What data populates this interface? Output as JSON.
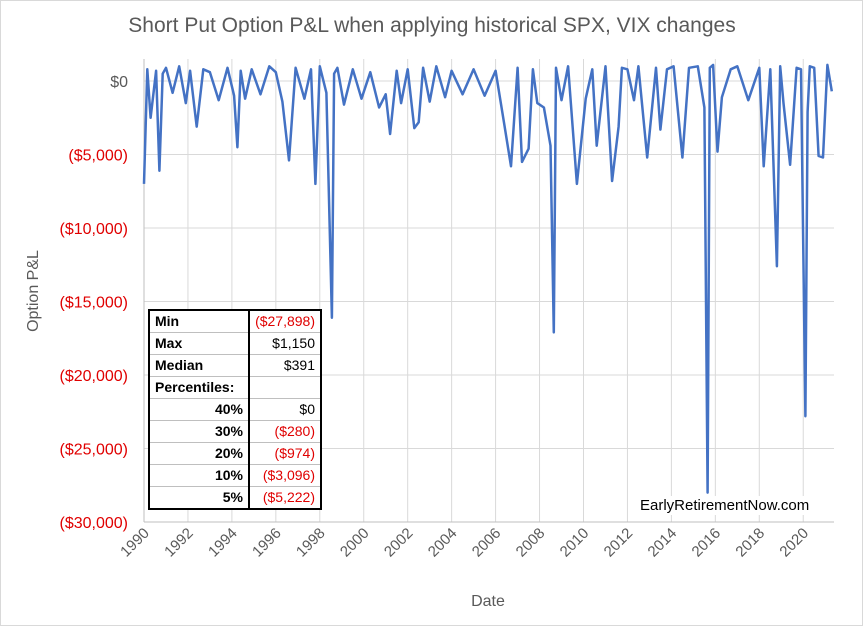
{
  "chart_data": {
    "type": "line",
    "title": "Short Put Option P&L when applying historical SPX, VIX changes",
    "xlabel": "Date",
    "ylabel": "Option P&L",
    "ylim": [
      -30000,
      1500
    ],
    "xlim": [
      1990,
      2021.4
    ],
    "yticks": [
      {
        "value": 0,
        "label": "$0"
      },
      {
        "value": -5000,
        "label": "($5,000)"
      },
      {
        "value": -10000,
        "label": "($10,000)"
      },
      {
        "value": -15000,
        "label": "($15,000)"
      },
      {
        "value": -20000,
        "label": "($20,000)"
      },
      {
        "value": -25000,
        "label": "($25,000)"
      },
      {
        "value": -30000,
        "label": "($30,000)"
      }
    ],
    "xticks": [
      "1990",
      "1992",
      "1994",
      "1996",
      "1998",
      "2000",
      "2002",
      "2004",
      "2006",
      "2008",
      "2010",
      "2012",
      "2014",
      "2016",
      "2018",
      "2020"
    ],
    "grid": true,
    "line_color": "#4472c4",
    "negative_label_color": "#e00000",
    "series": [
      {
        "x": [
          1990.0,
          1990.15,
          1990.3,
          1990.55,
          1990.7,
          1990.85,
          1991.0,
          1991.3,
          1991.6,
          1991.9,
          1992.1,
          1992.4,
          1992.7,
          1993.0,
          1993.4,
          1993.8,
          1994.1,
          1994.25,
          1994.4,
          1994.6,
          1994.9,
          1995.3,
          1995.7,
          1996.0,
          1996.3,
          1996.6,
          1996.9,
          1997.3,
          1997.6,
          1997.8,
          1998.0,
          1998.3,
          1998.55,
          1998.65,
          1998.8,
          1999.1,
          1999.5,
          1999.9,
          2000.3,
          2000.7,
          2001.0,
          2001.2,
          2001.5,
          2001.7,
          2002.0,
          2002.3,
          2002.5,
          2002.7,
          2003.0,
          2003.3,
          2003.7,
          2004.0,
          2004.5,
          2005.0,
          2005.5,
          2006.0,
          2006.4,
          2006.7,
          2007.0,
          2007.2,
          2007.5,
          2007.7,
          2007.9,
          2008.2,
          2008.5,
          2008.65,
          2008.75,
          2009.0,
          2009.3,
          2009.7,
          2010.1,
          2010.4,
          2010.6,
          2011.0,
          2011.3,
          2011.6,
          2011.75,
          2012.0,
          2012.3,
          2012.5,
          2012.9,
          2013.3,
          2013.5,
          2013.8,
          2014.1,
          2014.5,
          2014.8,
          2015.2,
          2015.5,
          2015.65,
          2015.75,
          2015.9,
          2016.1,
          2016.3,
          2016.7,
          2017.0,
          2017.5,
          2018.0,
          2018.2,
          2018.5,
          2018.8,
          2018.95,
          2019.1,
          2019.4,
          2019.7,
          2019.9,
          2020.1,
          2020.2,
          2020.3,
          2020.5,
          2020.7,
          2020.9,
          2021.1,
          2021.3
        ],
        "y": [
          -7000,
          800,
          -2500,
          700,
          -6100,
          500,
          900,
          -800,
          1000,
          -1500,
          700,
          -3100,
          800,
          600,
          -1300,
          900,
          -1000,
          -4500,
          700,
          -1200,
          800,
          -900,
          1000,
          600,
          -1400,
          -5400,
          900,
          -1200,
          800,
          -7000,
          1000,
          -800,
          -16100,
          500,
          900,
          -1600,
          800,
          -1200,
          600,
          -1800,
          -900,
          -3600,
          700,
          -1500,
          800,
          -3200,
          -2800,
          900,
          -1400,
          1000,
          -1100,
          700,
          -900,
          800,
          -1000,
          700,
          -3000,
          -5800,
          900,
          -5500,
          -4600,
          800,
          -1500,
          -1800,
          -4400,
          -17100,
          900,
          -1300,
          1000,
          -7000,
          -1200,
          800,
          -4400,
          1000,
          -6800,
          -3100,
          900,
          800,
          -1300,
          1000,
          -5200,
          900,
          -3300,
          800,
          1000,
          -5200,
          900,
          1000,
          -1800,
          -28000,
          900,
          1100,
          -4800,
          -1100,
          800,
          1000,
          -1300,
          900,
          -5800,
          800,
          -12600,
          1000,
          -1500,
          -5700,
          900,
          800,
          -22800,
          -2100,
          1000,
          900,
          -5100,
          -5200,
          1100,
          -700
        ]
      }
    ]
  },
  "stats": {
    "rows": [
      {
        "label": "Min",
        "value": "($27,898)",
        "negative": true,
        "indent": false
      },
      {
        "label": "Max",
        "value": "$1,150",
        "negative": false,
        "indent": false
      },
      {
        "label": "Median",
        "value": "$391",
        "negative": false,
        "indent": false
      },
      {
        "label": "Percentiles:",
        "value": "",
        "negative": false,
        "indent": false
      },
      {
        "label": "40%",
        "value": "$0",
        "negative": false,
        "indent": true
      },
      {
        "label": "30%",
        "value": "($280)",
        "negative": true,
        "indent": true
      },
      {
        "label": "20%",
        "value": "($974)",
        "negative": true,
        "indent": true
      },
      {
        "label": "10%",
        "value": "($3,096)",
        "negative": true,
        "indent": true
      },
      {
        "label": "5%",
        "value": "($5,222)",
        "negative": true,
        "indent": true
      }
    ]
  },
  "watermark": "EarlyRetirementNow.com"
}
